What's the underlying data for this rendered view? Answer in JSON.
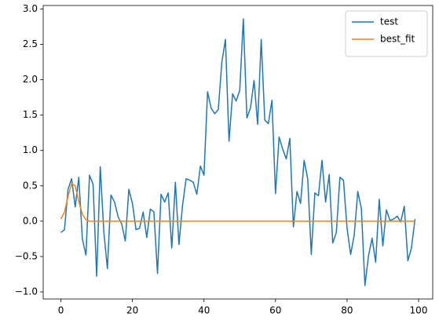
{
  "chart_data": {
    "type": "line",
    "x": [
      0,
      1,
      2,
      3,
      4,
      5,
      6,
      7,
      8,
      9,
      10,
      11,
      12,
      13,
      14,
      15,
      16,
      17,
      18,
      19,
      20,
      21,
      22,
      23,
      24,
      25,
      26,
      27,
      28,
      29,
      30,
      31,
      32,
      33,
      34,
      35,
      36,
      37,
      38,
      39,
      40,
      41,
      42,
      43,
      44,
      45,
      46,
      47,
      48,
      49,
      50,
      51,
      52,
      53,
      54,
      55,
      56,
      57,
      58,
      59,
      60,
      61,
      62,
      63,
      64,
      65,
      66,
      67,
      68,
      69,
      70,
      71,
      72,
      73,
      74,
      75,
      76,
      77,
      78,
      79,
      80,
      81,
      82,
      83,
      84,
      85,
      86,
      87,
      88,
      89,
      90,
      91,
      92,
      93,
      94,
      95,
      96,
      97,
      98,
      99
    ],
    "series": [
      {
        "name": "test",
        "color": "#1f77b4",
        "values": [
          -0.16,
          -0.12,
          0.45,
          0.6,
          0.2,
          0.62,
          -0.25,
          -0.48,
          0.65,
          0.52,
          -0.78,
          0.77,
          -0.15,
          -0.67,
          0.37,
          0.27,
          0.06,
          -0.04,
          -0.28,
          0.45,
          0.25,
          -0.12,
          -0.1,
          0.13,
          -0.23,
          0.17,
          0.13,
          -0.74,
          0.38,
          0.27,
          0.4,
          -0.38,
          0.55,
          -0.33,
          0.22,
          0.6,
          0.58,
          0.55,
          0.38,
          0.78,
          0.65,
          1.83,
          1.6,
          1.52,
          1.58,
          2.25,
          2.57,
          1.13,
          1.8,
          1.7,
          1.85,
          2.86,
          1.46,
          1.6,
          1.99,
          1.37,
          2.57,
          1.43,
          1.38,
          1.71,
          0.39,
          1.19,
          1.02,
          0.88,
          1.17,
          -0.08,
          0.42,
          0.25,
          0.86,
          0.6,
          -0.47,
          0.4,
          0.36,
          0.86,
          0.27,
          0.66,
          -0.31,
          -0.16,
          0.62,
          0.58,
          -0.1,
          -0.47,
          -0.2,
          0.42,
          0.18,
          -0.91,
          -0.49,
          -0.24,
          -0.58,
          0.31,
          -0.35,
          0.16,
          0.01,
          0.03,
          0.07,
          -0.01,
          0.21,
          -0.56,
          -0.38,
          0.03
        ]
      },
      {
        "name": "best_fit",
        "color": "#ff7f0e",
        "values": [
          0.03,
          0.13,
          0.35,
          0.53,
          0.5,
          0.28,
          0.1,
          0.02,
          0,
          0,
          0,
          0,
          0,
          0,
          0,
          0,
          0,
          0,
          0,
          0,
          0,
          0,
          0,
          0,
          0,
          0,
          0,
          0,
          0,
          0,
          0,
          0,
          0,
          0,
          0,
          0,
          0,
          0,
          0,
          0,
          0,
          0,
          0,
          0,
          0,
          0,
          0,
          0,
          0,
          0,
          0,
          0,
          0,
          0,
          0,
          0,
          0,
          0,
          0,
          0,
          0,
          0,
          0,
          0,
          0,
          0,
          0,
          0,
          0,
          0,
          0,
          0,
          0,
          0,
          0,
          0,
          0,
          0,
          0,
          0,
          0,
          0,
          0,
          0,
          0,
          0,
          0,
          0,
          0,
          0,
          0,
          0,
          0,
          0,
          0,
          0,
          0,
          0,
          0,
          0
        ]
      }
    ],
    "xlim": [
      -4.95,
      103.95
    ],
    "xticks": [
      0,
      20,
      40,
      60,
      80,
      100
    ],
    "ylim": [
      -1.1,
      3.05
    ],
    "yticks": [
      {
        "value": -1,
        "label": "−1.0"
      },
      {
        "value": -0.5,
        "label": "−0.5"
      },
      {
        "value": 0,
        "label": "0.0"
      },
      {
        "value": 0.5,
        "label": "0.5"
      },
      {
        "value": 1,
        "label": "1.0"
      },
      {
        "value": 1.5,
        "label": "1.5"
      },
      {
        "value": 2,
        "label": "2.0"
      },
      {
        "value": 2.5,
        "label": "2.5"
      },
      {
        "value": 3,
        "label": "3.0"
      }
    ],
    "legend": "upper right"
  }
}
